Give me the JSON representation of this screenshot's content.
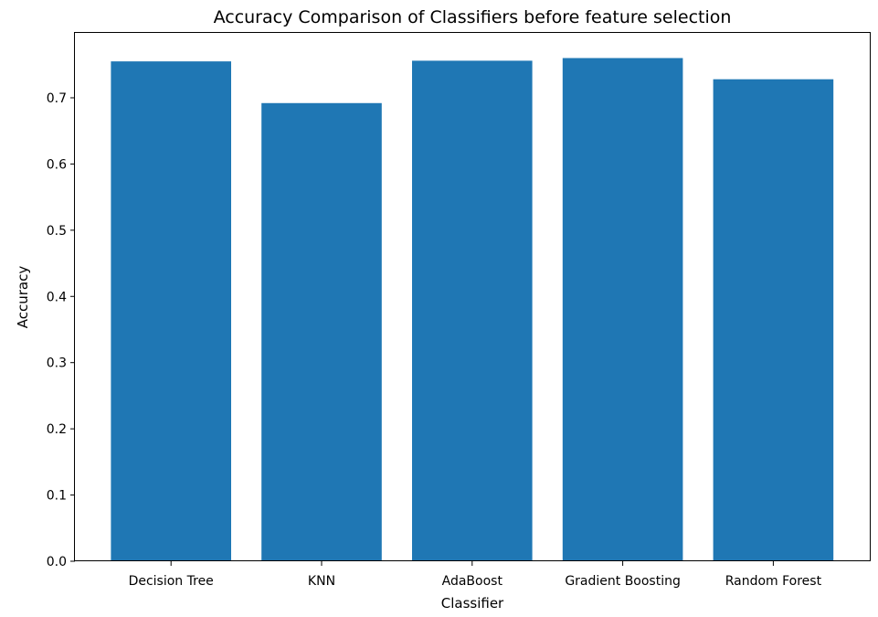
{
  "chart_data": {
    "type": "bar",
    "title": "Accuracy Comparison of Classifiers before feature selection",
    "xlabel": "Classifier",
    "ylabel": "Accuracy",
    "categories": [
      "Decision Tree",
      "KNN",
      "AdaBoost",
      "Gradient Boosting",
      "Random Forest"
    ],
    "values": [
      0.755,
      0.692,
      0.756,
      0.76,
      0.728
    ],
    "ylim": [
      0,
      0.798
    ],
    "yticks": [
      0.0,
      0.1,
      0.2,
      0.3,
      0.4,
      0.5,
      0.6,
      0.7
    ],
    "ytick_labels": [
      "0.0",
      "0.1",
      "0.2",
      "0.3",
      "0.4",
      "0.5",
      "0.6",
      "0.7"
    ],
    "grid": false,
    "legend": "none",
    "bar_color": "#1f77b4"
  }
}
